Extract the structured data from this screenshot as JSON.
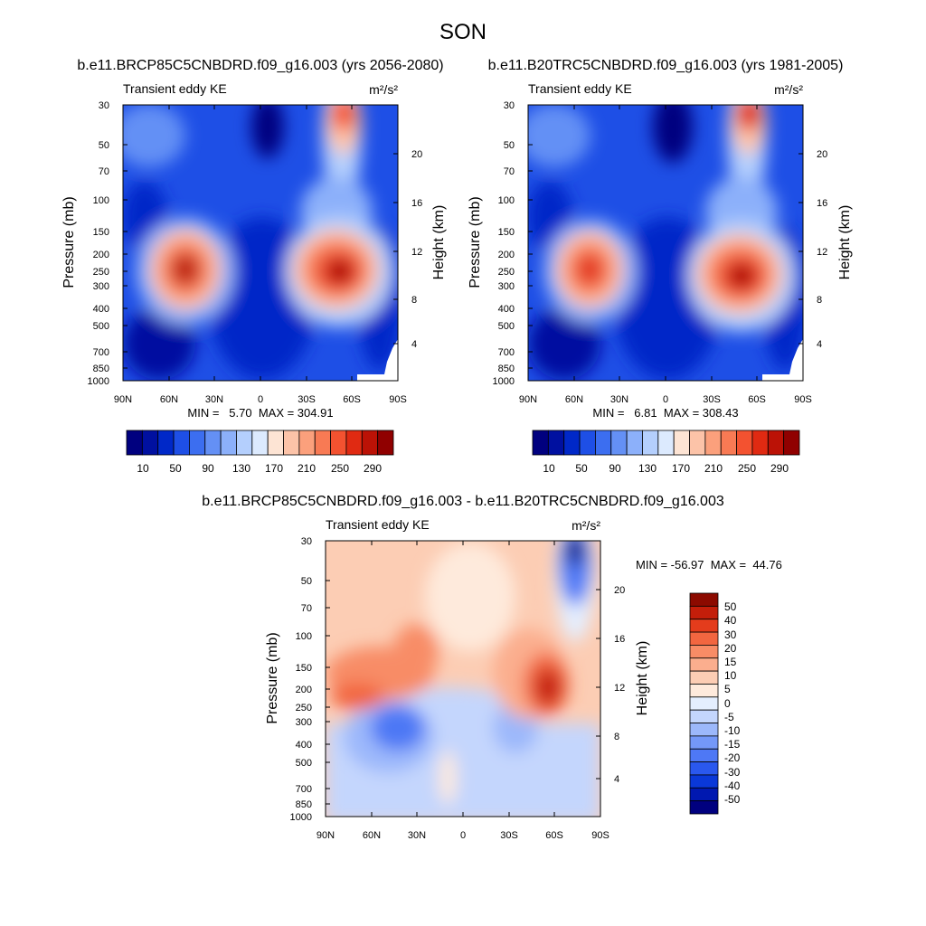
{
  "page_title": "SON",
  "colors": {
    "abs_scale": [
      "#00007f",
      "#0010a0",
      "#0028c8",
      "#1e4fe6",
      "#3c6ef0",
      "#6490f5",
      "#8cb0fa",
      "#b4cffd",
      "#dceafe",
      "#fde4d4",
      "#fcc3a8",
      "#fba07c",
      "#f87a54",
      "#f35230",
      "#e02a12",
      "#bb1206",
      "#900000"
    ],
    "diff_scale": [
      "#00007f",
      "#0018b0",
      "#0a38d8",
      "#2a58ee",
      "#4e78f5",
      "#7498f8",
      "#9cb8fb",
      "#c4d6fd",
      "#e4eefe",
      "#feeadc",
      "#fccdb4",
      "#fbae8e",
      "#f88c66",
      "#f26640",
      "#e43c1c",
      "#c41e0a",
      "#8c0a00"
    ]
  },
  "chart_data": [
    {
      "type": "heatmap",
      "title": "b.e11.BRCP85C5CNBDRD.f09_g16.003 (yrs 2056-2080)",
      "left_label": "Transient eddy KE",
      "units_label": "m²/s²",
      "ylabel": "Pressure (mb)",
      "ylabel_right": "Height (km)",
      "x_ticks": [
        "90N",
        "60N",
        "30N",
        "0",
        "30S",
        "60S",
        "90S"
      ],
      "y_ticks": [
        "30",
        "50",
        "70",
        "100",
        "150",
        "200",
        "250",
        "300",
        "400",
        "500",
        "700",
        "850",
        "1000"
      ],
      "y_ticks_right": [
        "20",
        "16",
        "12",
        "8",
        "4"
      ],
      "stats": "MIN =   5.70  MAX = 304.91",
      "colorbar_labels": [
        "10",
        "50",
        "90",
        "130",
        "170",
        "210",
        "250",
        "290"
      ],
      "features": [
        {
          "lat": 50,
          "p": 250,
          "value": 280
        },
        {
          "lat": -55,
          "p": 260,
          "value": 305
        },
        {
          "lat": -60,
          "p": 30,
          "value": 290
        },
        {
          "lat": 0,
          "p": 50,
          "value": 6
        }
      ]
    },
    {
      "type": "heatmap",
      "title": "b.e11.B20TRC5CNBDRD.f09_g16.003 (yrs 1981-2005)",
      "left_label": "Transient eddy KE",
      "units_label": "m²/s²",
      "ylabel": "Pressure (mb)",
      "ylabel_right": "Height (km)",
      "x_ticks": [
        "90N",
        "60N",
        "30N",
        "0",
        "30S",
        "60S",
        "90S"
      ],
      "y_ticks": [
        "30",
        "50",
        "70",
        "100",
        "150",
        "200",
        "250",
        "300",
        "400",
        "500",
        "700",
        "850",
        "1000"
      ],
      "y_ticks_right": [
        "20",
        "16",
        "12",
        "8",
        "4"
      ],
      "stats": "MIN =   6.81  MAX = 308.43",
      "colorbar_labels": [
        "10",
        "50",
        "90",
        "130",
        "170",
        "210",
        "250",
        "290"
      ],
      "features": [
        {
          "lat": 48,
          "p": 250,
          "value": 265
        },
        {
          "lat": -50,
          "p": 280,
          "value": 300
        },
        {
          "lat": -60,
          "p": 30,
          "value": 308
        },
        {
          "lat": 0,
          "p": 50,
          "value": 7
        }
      ]
    },
    {
      "type": "heatmap",
      "title": "b.e11.BRCP85C5CNBDRD.f09_g16.003 - b.e11.B20TRC5CNBDRD.f09_g16.003",
      "left_label": "Transient eddy KE",
      "units_label": "m²/s²",
      "ylabel": "Pressure (mb)",
      "ylabel_right": "Height (km)",
      "x_ticks": [
        "90N",
        "60N",
        "30N",
        "0",
        "30S",
        "60S",
        "90S"
      ],
      "y_ticks": [
        "30",
        "50",
        "70",
        "100",
        "150",
        "200",
        "250",
        "300",
        "400",
        "500",
        "700",
        "850",
        "1000"
      ],
      "y_ticks_right": [
        "20",
        "16",
        "12",
        "8",
        "4"
      ],
      "stats": "MIN = -56.97  MAX =  44.76",
      "colorbar_labels": [
        "50",
        "40",
        "30",
        "20",
        "15",
        "10",
        "5",
        "0",
        "-5",
        "-10",
        "-15",
        "-20",
        "-30",
        "-40",
        "-50"
      ],
      "features": [
        {
          "lat": -60,
          "p": 200,
          "value": 44.76
        },
        {
          "lat": -75,
          "p": 30,
          "value": -56.97
        },
        {
          "lat": 35,
          "p": 300,
          "value": -22
        },
        {
          "lat": 60,
          "p": 200,
          "value": 32
        }
      ]
    }
  ]
}
